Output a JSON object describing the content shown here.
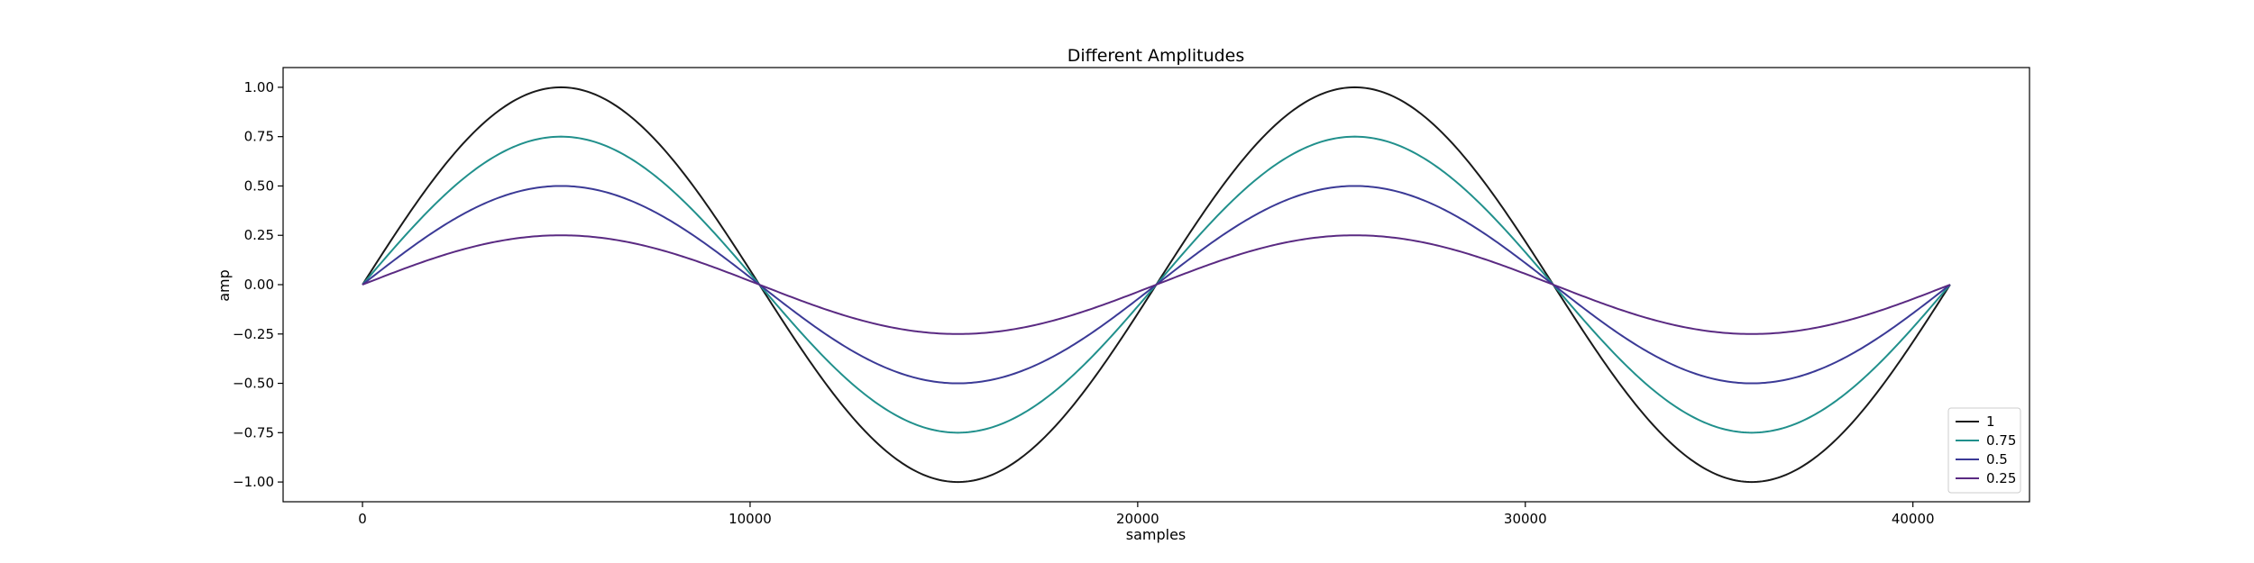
{
  "chart_data": {
    "type": "line",
    "title": "Different Amplitudes",
    "xlabel": "samples",
    "ylabel": "amp",
    "xlim": [
      -2048,
      43008
    ],
    "ylim": [
      -1.1,
      1.1
    ],
    "x_ticks": [
      0,
      10000,
      20000,
      30000,
      40000
    ],
    "x_tick_labels": [
      "0",
      "10000",
      "20000",
      "30000",
      "40000"
    ],
    "y_ticks": [
      1.0,
      0.75,
      0.5,
      0.25,
      0.0,
      -0.25,
      -0.5,
      -0.75,
      -1.0
    ],
    "y_tick_labels": [
      "1.00",
      "0.75",
      "0.50",
      "0.25",
      "0.00",
      "−0.25",
      "−0.50",
      "−0.75",
      "−1.00"
    ],
    "x_range": [
      0,
      40960
    ],
    "waveform": "sine",
    "cycles": 2,
    "grid": false,
    "legend_position": "lower-right",
    "series": [
      {
        "name": "1",
        "amplitude": 1.0,
        "color": "#1a1a1a"
      },
      {
        "name": "0.75",
        "amplitude": 0.75,
        "color": "#21908c"
      },
      {
        "name": "0.5",
        "amplitude": 0.5,
        "color": "#3b3a96"
      },
      {
        "name": "0.25",
        "amplitude": 0.25,
        "color": "#5a2a82"
      }
    ]
  }
}
